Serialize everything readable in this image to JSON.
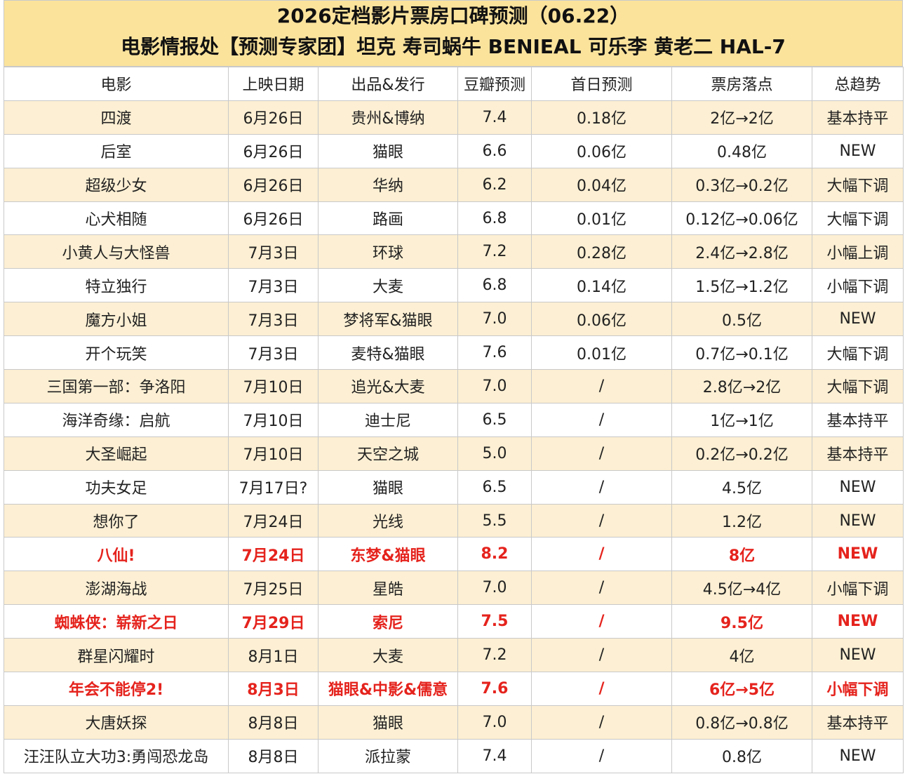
{
  "header": {
    "title": "2026定档影片票房口碑预测（06.22）",
    "subtitle": "电影情报处【预测专家团】坦克 寿司蜗牛 BENIEAL 可乐李 黄老二 HAL-7"
  },
  "table": {
    "headers": [
      "电影",
      "上映日期",
      "出品&发行",
      "豆瓣预测",
      "首日预测",
      "票房落点",
      "总趋势"
    ],
    "rows": [
      [
        "四渡",
        "6月26日",
        "贵州&博纳",
        "7.4",
        "0.18亿",
        "2亿→2亿",
        "基本持平"
      ],
      [
        "后室",
        "6月26日",
        "猫眼",
        "6.6",
        "0.06亿",
        "0.48亿",
        "NEW"
      ],
      [
        "超级少女",
        "6月26日",
        "华纳",
        "6.2",
        "0.04亿",
        "0.3亿→0.2亿",
        "大幅下调"
      ],
      [
        "心犬相随",
        "6月26日",
        "路画",
        "6.8",
        "0.01亿",
        "0.12亿→0.06亿",
        "大幅下调"
      ],
      [
        "小黄人与大怪兽",
        "7月3日",
        "环球",
        "7.2",
        "0.28亿",
        "2.4亿→2.8亿",
        "小幅上调"
      ],
      [
        "特立独行",
        "7月3日",
        "大麦",
        "6.8",
        "0.14亿",
        "1.5亿→1.2亿",
        "小幅下调"
      ],
      [
        "魔方小姐",
        "7月3日",
        "梦将军&猫眼",
        "7.0",
        "0.06亿",
        "0.5亿",
        "NEW"
      ],
      [
        "开个玩笑",
        "7月3日",
        "麦特&猫眼",
        "7.6",
        "0.01亿",
        "0.7亿→0.1亿",
        "大幅下调"
      ],
      [
        "三国第一部：争洛阳",
        "7月10日",
        "追光&大麦",
        "7.0",
        "/",
        "2.8亿→2亿",
        "大幅下调"
      ],
      [
        "海洋奇缘：启航",
        "7月10日",
        "迪士尼",
        "6.5",
        "/",
        "1亿→1亿",
        "基本持平"
      ],
      [
        "大圣崛起",
        "7月10日",
        "天空之城",
        "5.0",
        "/",
        "0.2亿→0.2亿",
        "基本持平"
      ],
      [
        "功夫女足",
        "7月17日?",
        "猫眼",
        "6.5",
        "/",
        "4.5亿",
        "NEW"
      ],
      [
        "想你了",
        "7月24日",
        "光线",
        "5.5",
        "/",
        "1.2亿",
        "NEW"
      ],
      [
        "八仙!",
        "7月24日",
        "东梦&猫眼",
        "8.2",
        "/",
        "8亿",
        "NEW"
      ],
      [
        "澎湖海战",
        "7月25日",
        "星皓",
        "7.0",
        "/",
        "4.5亿→4亿",
        "小幅下调"
      ],
      [
        "蜘蛛侠：崭新之日",
        "7月29日",
        "索尼",
        "7.5",
        "/",
        "9.5亿",
        "NEW"
      ],
      [
        "群星闪耀时",
        "8月1日",
        "大麦",
        "7.2",
        "/",
        "4亿",
        "NEW"
      ],
      [
        "年会不能停2!",
        "8月3日",
        "猫眼&中影&儒意",
        "7.6",
        "/",
        "6亿→5亿",
        "小幅下调"
      ],
      [
        "大唐妖探",
        "8月8日",
        "猫眼",
        "7.0",
        "/",
        "0.8亿→0.8亿",
        "基本持平"
      ],
      [
        "汪汪队立大功3:勇闯恐龙岛",
        "8月8日",
        "派拉蒙",
        "7.4",
        "/",
        "0.8亿",
        "NEW"
      ]
    ],
    "highlight_rows": [
      13,
      15,
      17
    ],
    "highlight_color": "#e5231d"
  }
}
